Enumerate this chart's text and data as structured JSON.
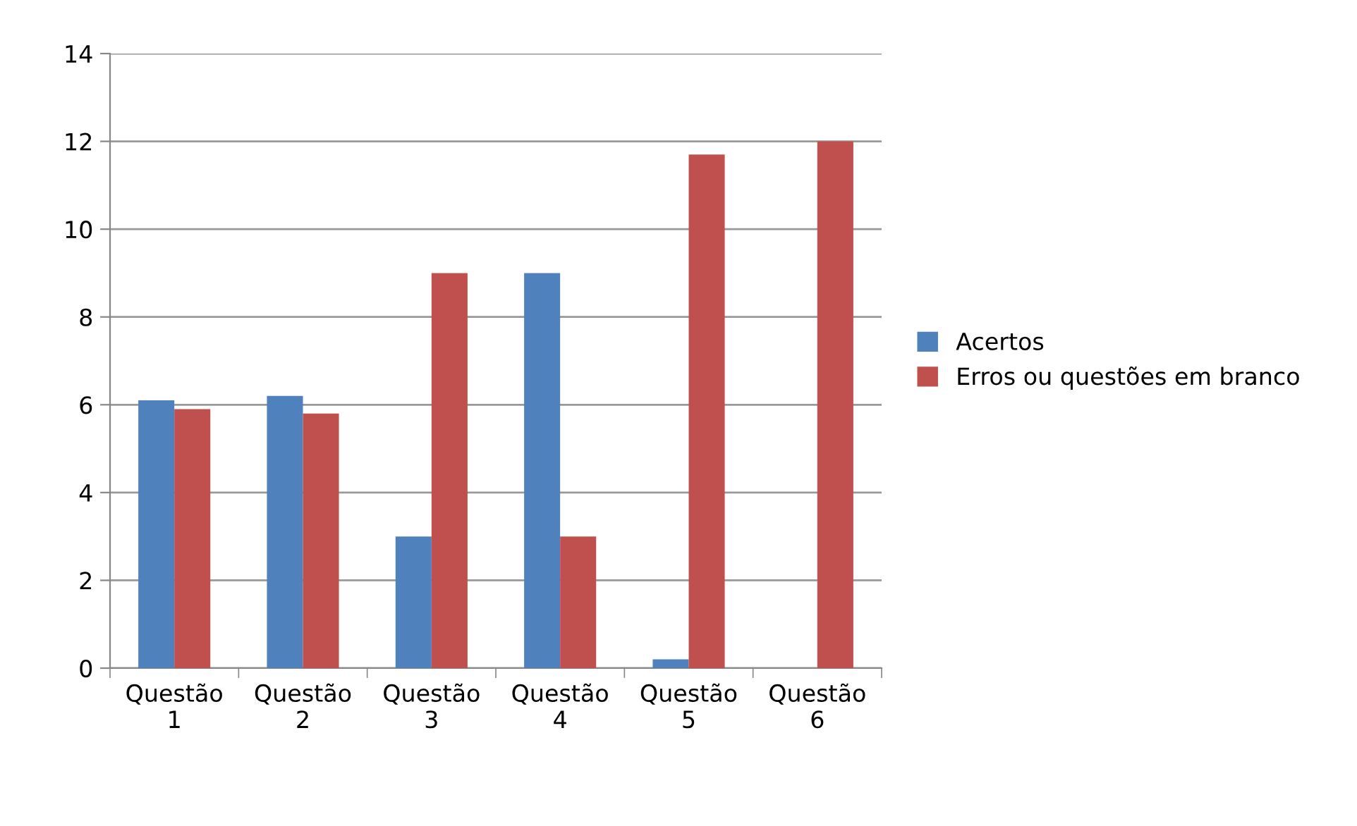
{
  "chart_data": {
    "type": "bar",
    "categories": [
      "Questão\n1",
      "Questão\n2",
      "Questão\n3",
      "Questão\n4",
      "Questão\n5",
      "Questão\n6"
    ],
    "series": [
      {
        "name": "Acertos",
        "color": "#4f81bd",
        "values": [
          6.1,
          6.2,
          3,
          9,
          0.2,
          0
        ]
      },
      {
        "name": "Erros ou questões em branco",
        "color": "#c0504d",
        "values": [
          5.9,
          5.8,
          9,
          3,
          11.7,
          12
        ]
      }
    ],
    "ylim": [
      0,
      14
    ],
    "yticks": [
      0,
      2,
      4,
      6,
      8,
      10,
      12,
      14
    ],
    "grid": "y",
    "legend": "right"
  }
}
